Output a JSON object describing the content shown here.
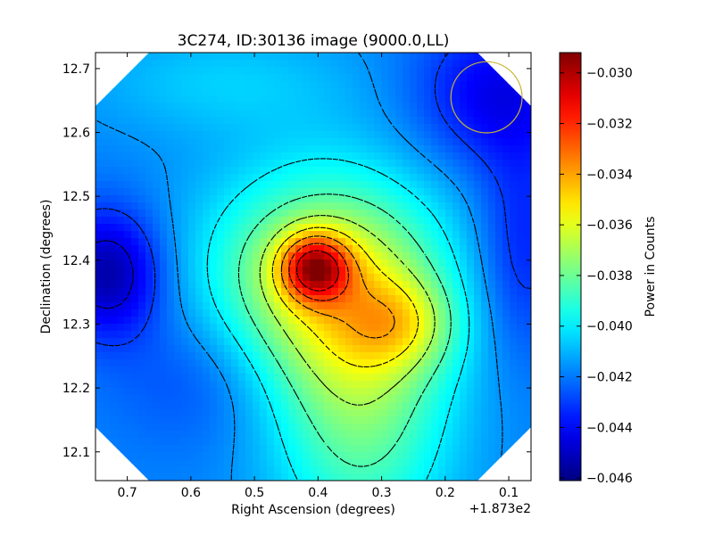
{
  "chart_data": {
    "type": "heatmap",
    "title": "3C274, ID:30136 image (9000.0,LL)",
    "xlabel": "Right Ascension (degrees)",
    "ylabel": "Declination (degrees)",
    "x_offset_text": "+1.873e2",
    "x_offset_value": 187.3,
    "x_range": [
      0.75,
      0.065
    ],
    "y_range": [
      12.055,
      12.725
    ],
    "x_ticks": [
      0.7,
      0.6,
      0.5,
      0.4,
      0.3,
      0.2,
      0.1
    ],
    "x_tick_labels": [
      "0.7",
      "0.6",
      "0.5",
      "0.4",
      "0.3",
      "0.2",
      "0.1"
    ],
    "y_ticks": [
      12.1,
      12.2,
      12.3,
      12.4,
      12.5,
      12.6,
      12.7
    ],
    "y_tick_labels": [
      "12.1",
      "12.2",
      "12.3",
      "12.4",
      "12.5",
      "12.6",
      "12.7"
    ],
    "colormap": "jet",
    "colorbar": {
      "label": "Power in Counts",
      "range": [
        -0.0461,
        -0.0292
      ],
      "ticks": [
        -0.03,
        -0.032,
        -0.034,
        -0.036,
        -0.038,
        -0.04,
        -0.042,
        -0.044,
        -0.046
      ],
      "tick_labels": [
        "−0.030",
        "−0.032",
        "−0.034",
        "−0.036",
        "−0.038",
        "−0.040",
        "−0.042",
        "−0.044",
        "−0.046"
      ]
    },
    "contour_style": "black dashed",
    "peak": {
      "ra": 0.405,
      "dec": 12.388,
      "value": -0.0297
    },
    "secondary_peak": {
      "ra": 0.27,
      "dec": 12.3,
      "value": -0.0358
    },
    "minimum": {
      "ra": 0.73,
      "dec": 12.38,
      "value": -0.0455
    },
    "marker_circle": {
      "ra": 0.135,
      "dec": 12.655,
      "radius_deg": 0.056,
      "color": "#c8b432"
    },
    "corner_mask": "image masked to octagon with white corners"
  }
}
